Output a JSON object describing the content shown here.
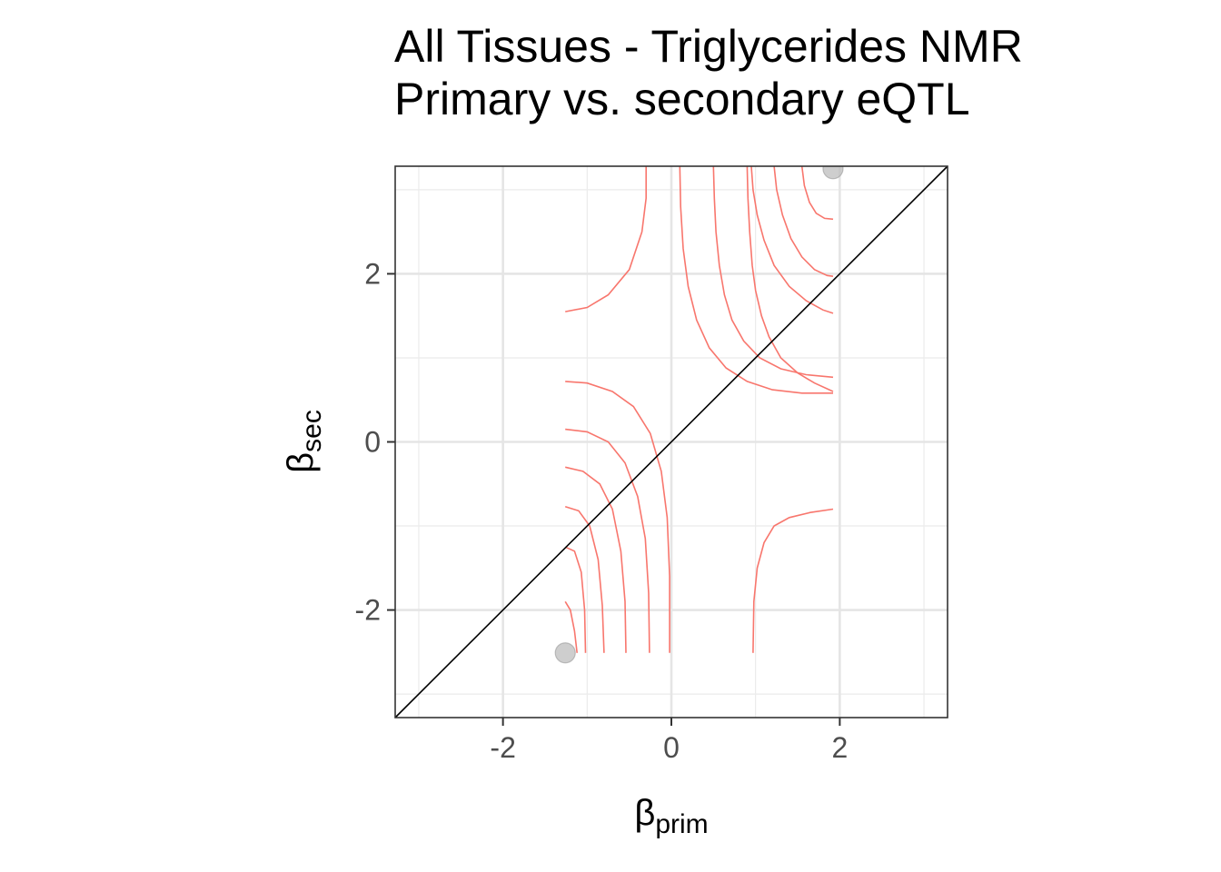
{
  "chart_data": {
    "type": "scatter",
    "title": "All Tissues - Triglycerides NMR",
    "subtitle": "Primary vs. secondary eQTL",
    "xlabel": {
      "symbol": "β",
      "subscript": "prim"
    },
    "ylabel": {
      "symbol": "β",
      "subscript": "sec"
    },
    "xlim": [
      -3.28,
      3.28
    ],
    "ylim": [
      -3.28,
      3.28
    ],
    "x_ticks": [
      -2,
      0,
      2
    ],
    "x_tick_labels": [
      "-2",
      "0",
      "2"
    ],
    "y_ticks": [
      -2,
      0,
      2
    ],
    "y_tick_labels": [
      "-2",
      "0",
      "2"
    ],
    "grid": true,
    "legend": "none",
    "diagonal_line": {
      "slope": 1,
      "intercept": 0,
      "color": "#000000"
    },
    "points": [
      {
        "x": -1.26,
        "y": -2.51
      },
      {
        "x": 1.92,
        "y": 3.25
      }
    ],
    "point_color": "#bdbdbd",
    "contour_color": "#f8766d",
    "contours": [
      {
        "x": [
          0.9,
          0.91,
          0.93,
          0.96,
          1.0,
          1.07,
          1.16,
          1.3,
          1.5,
          1.7,
          1.92
        ],
        "y": [
          3.28,
          2.9,
          2.5,
          2.1,
          1.8,
          1.5,
          1.25,
          1.0,
          0.82,
          0.7,
          0.6
        ]
      },
      {
        "x": [
          0.5,
          0.51,
          0.53,
          0.57,
          0.63,
          0.72,
          0.86,
          1.05,
          1.3,
          1.6,
          1.92
        ],
        "y": [
          3.28,
          2.9,
          2.5,
          2.1,
          1.75,
          1.45,
          1.2,
          1.0,
          0.87,
          0.8,
          0.77
        ]
      },
      {
        "x": [
          0.1,
          0.11,
          0.14,
          0.2,
          0.3,
          0.45,
          0.65,
          0.9,
          1.2,
          1.55,
          1.92
        ],
        "y": [
          3.28,
          2.8,
          2.3,
          1.85,
          1.45,
          1.12,
          0.88,
          0.72,
          0.62,
          0.58,
          0.58
        ]
      },
      {
        "x": [
          0.95,
          0.97,
          1.02,
          1.1,
          1.22,
          1.4,
          1.6,
          1.8,
          1.92
        ],
        "y": [
          3.28,
          3.0,
          2.7,
          2.4,
          2.1,
          1.85,
          1.68,
          1.57,
          1.53
        ]
      },
      {
        "x": [
          1.22,
          1.25,
          1.32,
          1.42,
          1.55,
          1.7,
          1.85,
          1.92
        ],
        "y": [
          3.28,
          3.0,
          2.7,
          2.42,
          2.2,
          2.05,
          1.98,
          1.97
        ]
      },
      {
        "x": [
          1.55,
          1.58,
          1.64,
          1.72,
          1.82,
          1.92
        ],
        "y": [
          3.28,
          3.05,
          2.85,
          2.72,
          2.66,
          2.65
        ]
      },
      {
        "x": [
          -1.26,
          -1.0,
          -0.75,
          -0.5,
          -0.35,
          -0.3,
          -0.3
        ],
        "y": [
          1.55,
          1.6,
          1.75,
          2.05,
          2.5,
          2.9,
          3.28
        ]
      },
      {
        "x": [
          -1.26,
          -1.0,
          -0.7,
          -0.45,
          -0.25,
          -0.12,
          -0.05,
          -0.02,
          -0.02
        ],
        "y": [
          0.72,
          0.7,
          0.6,
          0.42,
          0.1,
          -0.35,
          -0.9,
          -1.6,
          -2.51
        ]
      },
      {
        "x": [
          -1.26,
          -1.0,
          -0.75,
          -0.55,
          -0.4,
          -0.31,
          -0.27,
          -0.26
        ],
        "y": [
          0.15,
          0.12,
          0.0,
          -0.25,
          -0.65,
          -1.15,
          -1.8,
          -2.51
        ]
      },
      {
        "x": [
          -1.26,
          -1.05,
          -0.85,
          -0.7,
          -0.6,
          -0.55,
          -0.54
        ],
        "y": [
          -0.3,
          -0.35,
          -0.5,
          -0.8,
          -1.3,
          -1.9,
          -2.51
        ]
      },
      {
        "x": [
          -1.26,
          -1.1,
          -0.97,
          -0.87,
          -0.82,
          -0.8
        ],
        "y": [
          -0.77,
          -0.82,
          -1.0,
          -1.4,
          -1.95,
          -2.51
        ]
      },
      {
        "x": [
          -1.26,
          -1.15,
          -1.07,
          -1.03,
          -1.02
        ],
        "y": [
          -1.25,
          -1.3,
          -1.55,
          -2.0,
          -2.51
        ]
      },
      {
        "x": [
          -1.26,
          -1.2,
          -1.15,
          -1.12
        ],
        "y": [
          -1.9,
          -2.0,
          -2.25,
          -2.51
        ]
      },
      {
        "x": [
          0.97,
          0.98,
          1.02,
          1.1,
          1.22,
          1.4,
          1.65,
          1.92
        ],
        "y": [
          -2.51,
          -1.9,
          -1.5,
          -1.2,
          -1.0,
          -0.9,
          -0.84,
          -0.8
        ]
      },
      {
        "x": [
          0.22,
          0.22
        ],
        "y": [
          -2.51,
          -2.51
        ]
      }
    ]
  }
}
